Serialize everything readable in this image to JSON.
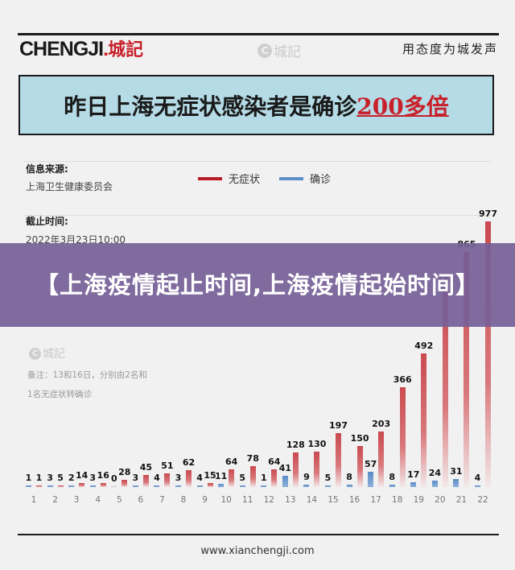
{
  "header": {
    "logo_latin": "CHENGJI",
    "logo_dot": ".",
    "logo_cn": "城記",
    "watermark_text": "城記",
    "slogan": "用态度为城发声"
  },
  "banner": {
    "title_prefix": "昨日上海无症状感染者是确诊",
    "title_highlight": "200多倍"
  },
  "meta": {
    "source_label": "信息来源:",
    "source_value": "上海卫生健康委员会",
    "deadline_label": "截止时间:",
    "deadline_value": "2022年3月23日10:00",
    "note_line1": "备注：13和16日，分别由2名和",
    "note_line2": "1名无症状转确诊"
  },
  "legend": [
    {
      "label": "无症状",
      "color": "#b81c25"
    },
    {
      "label": "确诊",
      "color": "#5b8ec8"
    }
  ],
  "overlay": {
    "title": "【上海疫情起止时间,上海疫情起始时间】"
  },
  "footer": {
    "url": "www.xianchengji.com"
  },
  "chart_data": {
    "type": "bar",
    "title": "昨日上海无症状感染者是确诊200多倍",
    "xlabel": "",
    "ylabel": "",
    "categories": [
      "1",
      "2",
      "3",
      "4",
      "5",
      "6",
      "7",
      "8",
      "9",
      "10",
      "11",
      "12",
      "13",
      "14",
      "15",
      "16",
      "17",
      "18",
      "19",
      "20",
      "21",
      "22"
    ],
    "series": [
      {
        "name": "确诊",
        "color": "#5b8ec8",
        "values": [
          1,
          3,
          2,
          3,
          0,
          3,
          4,
          3,
          4,
          11,
          5,
          1,
          41,
          9,
          5,
          8,
          57,
          8,
          17,
          24,
          31,
          4
        ]
      },
      {
        "name": "无症状",
        "color": "#c94a4f",
        "values": [
          1,
          5,
          14,
          16,
          28,
          45,
          51,
          62,
          15,
          64,
          78,
          64,
          128,
          130,
          197,
          150,
          203,
          366,
          492,
          734,
          865,
          977
        ]
      }
    ],
    "ylim": [
      0,
      1000
    ],
    "grid": false,
    "legend_position": "top"
  }
}
